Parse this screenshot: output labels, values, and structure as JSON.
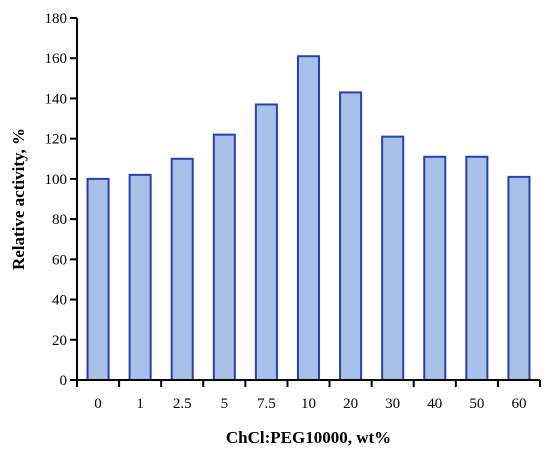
{
  "chart_data": {
    "type": "bar",
    "title": "",
    "xlabel": "ChCl:PEG10000, wt%",
    "ylabel": "Relative activity, %",
    "categories": [
      "0",
      "1",
      "2.5",
      "5",
      "7.5",
      "10",
      "20",
      "30",
      "40",
      "50",
      "60"
    ],
    "values": [
      100,
      102,
      110,
      122,
      137,
      161,
      143,
      121,
      111,
      111,
      101
    ],
    "ylim": [
      0,
      180
    ],
    "yticks": [
      0,
      20,
      40,
      60,
      80,
      100,
      120,
      140,
      160,
      180
    ],
    "grid": false,
    "legend": "none",
    "colors": {
      "bar_fill": "#a7c1e9",
      "bar_stroke": "#2a3fb0"
    }
  }
}
